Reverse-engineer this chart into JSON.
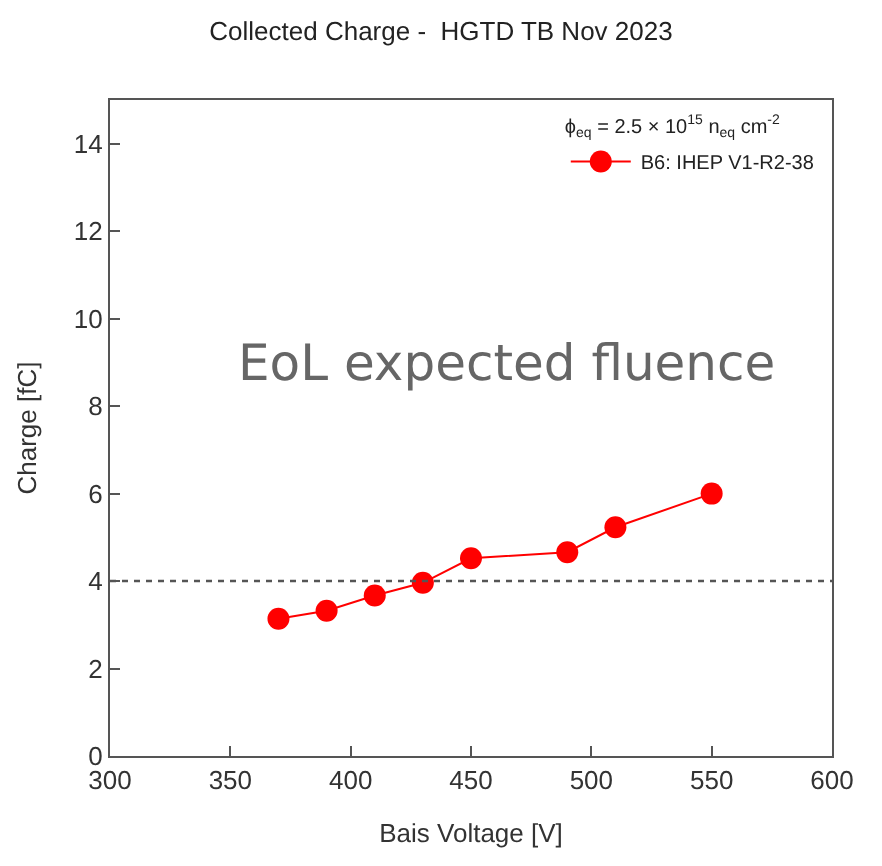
{
  "chart_data": {
    "type": "line",
    "title": "Collected Charge -  HGTD TB Nov 2023",
    "xlabel": "Bais Voltage [V]",
    "ylabel": "Charge [fC]",
    "legend_title": "ϕ$_{eq}$ = 2.5 × 10$^{15}$ n$_{eq}$ cm$^{-2}$",
    "x": [
      370,
      390,
      410,
      430,
      450,
      490,
      510,
      550
    ],
    "series": [
      {
        "name": "B6: IHEP V1-R2-38",
        "color": "#ff0000",
        "values": [
          3.14,
          3.32,
          3.67,
          3.96,
          4.52,
          4.66,
          5.23,
          6.0
        ]
      }
    ],
    "xlim": [
      300,
      600
    ],
    "xticks": [
      300,
      350,
      400,
      450,
      500,
      550,
      600
    ],
    "ylim": [
      0,
      15
    ],
    "yticks": [
      0,
      2,
      4,
      6,
      8,
      10,
      12,
      14
    ],
    "ref_lines": [
      {
        "axis": "y",
        "value": 4,
        "color": "#555555",
        "line_style": "dotted"
      }
    ],
    "annotations": [
      "EoL expected fluence"
    ],
    "marker": "circle",
    "line_style": "solid",
    "legend": "top right"
  }
}
